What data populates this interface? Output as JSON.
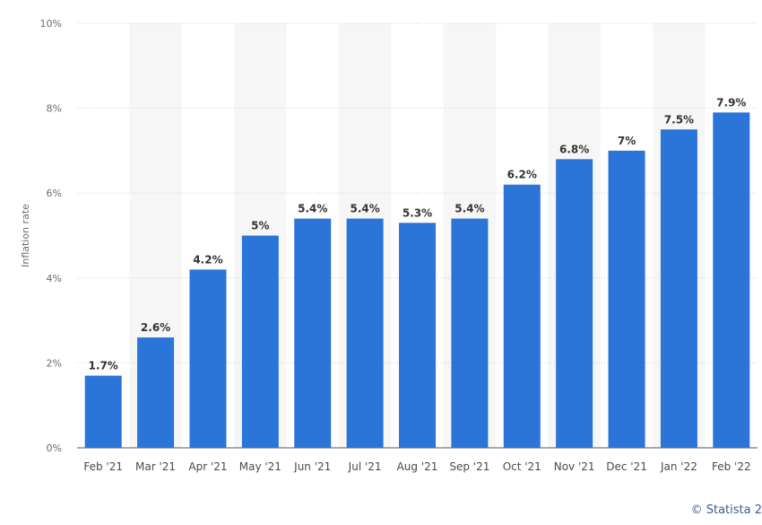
{
  "chart_data": {
    "type": "bar",
    "categories": [
      "Feb '21",
      "Mar '21",
      "Apr '21",
      "May '21",
      "Jun '21",
      "Jul '21",
      "Aug '21",
      "Sep '21",
      "Oct '21",
      "Nov '21",
      "Dec '21",
      "Jan '22",
      "Feb '22"
    ],
    "values": [
      1.7,
      2.6,
      4.2,
      5,
      5.4,
      5.4,
      5.3,
      5.4,
      6.2,
      6.8,
      7,
      7.5,
      7.9
    ],
    "data_labels": [
      "1.7%",
      "2.6%",
      "4.2%",
      "5%",
      "5.4%",
      "5.4%",
      "5.3%",
      "5.4%",
      "6.2%",
      "6.8%",
      "7%",
      "7.5%",
      "7.9%"
    ],
    "ylabel": "Inflation rate",
    "ylim": [
      0,
      10
    ],
    "yticks": [
      0,
      2,
      4,
      6,
      8,
      10
    ],
    "ytick_labels": [
      "0%",
      "2%",
      "4%",
      "6%",
      "8%",
      "10%"
    ],
    "grid": true,
    "bar_color": "#2b74d8",
    "band_color": "#f6f6f6",
    "grid_color": "#cfcfcf"
  },
  "credit": "© Statista 2"
}
